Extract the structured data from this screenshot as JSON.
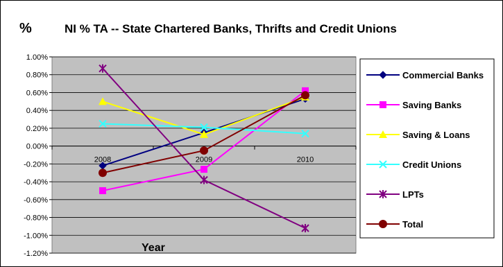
{
  "chart_data": {
    "type": "line",
    "title": "NI % TA -- State Chartered Banks, Thrifts and Credit Unions",
    "ylabel": "%",
    "xlabel": "Year",
    "categories": [
      "2008",
      "2009",
      "2010"
    ],
    "ylim": [
      -1.2,
      1.0
    ],
    "y_ticks": [
      "1.00%",
      "0.80%",
      "0.60%",
      "0.40%",
      "0.20%",
      "0.00%",
      "-0.20%",
      "-0.40%",
      "-0.60%",
      "-0.80%",
      "-1.00%",
      "-1.20%"
    ],
    "plot_background": "#c0c0c0",
    "grid": true,
    "legend_position": "right",
    "series": [
      {
        "name": "Commercial Banks",
        "values": [
          -0.22,
          0.15,
          0.53
        ],
        "color": "#000080",
        "marker": "diamond"
      },
      {
        "name": "Saving Banks",
        "values": [
          -0.5,
          -0.26,
          0.62
        ],
        "color": "#ff00ff",
        "marker": "square"
      },
      {
        "name": "Saving & Loans",
        "values": [
          0.5,
          0.13,
          0.55
        ],
        "color": "#ffff00",
        "marker": "triangle"
      },
      {
        "name": "Credit Unions",
        "values": [
          0.25,
          0.21,
          0.14
        ],
        "color": "#33ffff",
        "marker": "x"
      },
      {
        "name": "LPTs",
        "values": [
          0.87,
          -0.38,
          -0.92
        ],
        "color": "#800080",
        "marker": "star"
      },
      {
        "name": "Total",
        "values": [
          -0.3,
          -0.05,
          0.57
        ],
        "color": "#800000",
        "marker": "circle"
      }
    ]
  }
}
